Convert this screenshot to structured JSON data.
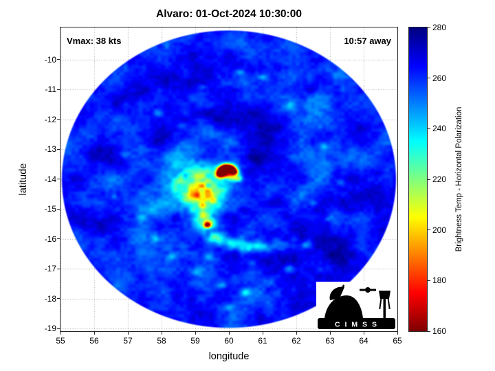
{
  "title": "Alvaro: 01-Oct-2024 10:30:00",
  "annotations": {
    "vmax": "Vmax: 38 kts",
    "time_offset": "10:57 away"
  },
  "axes": {
    "xlabel": "longitude",
    "ylabel": "latitude",
    "xticks": [
      55,
      56,
      57,
      58,
      59,
      60,
      61,
      62,
      63,
      64,
      65
    ],
    "yticks": [
      -10,
      -11,
      -12,
      -13,
      -14,
      -15,
      -16,
      -17,
      -18,
      -19
    ],
    "xlim": [
      55,
      65
    ],
    "ylim": [
      -19.09,
      -8.92
    ]
  },
  "colorbar": {
    "label": "Brightness Temp - Horizontal Polarization",
    "ticks": [
      160,
      180,
      200,
      220,
      240,
      260,
      280
    ],
    "min": 160,
    "max": 280,
    "colormap": "jet-reversed"
  },
  "logo": {
    "text": "C I M S S"
  },
  "chart_data": {
    "type": "heatmap",
    "title": "Alvaro: 01-Oct-2024 10:30:00",
    "xlabel": "longitude",
    "ylabel": "latitude",
    "xlim": [
      55,
      65
    ],
    "ylim": [
      -19.09,
      -8.92
    ],
    "colorbar_label": "Brightness Temp - Horizontal Polarization",
    "clim": [
      160,
      280
    ],
    "grid": true,
    "description": "Circular microwave brightness-temperature swath of tropical storm Alvaro: blue background ~260K, convective comma-shaped core ~200K west of center, dark-red eyewall arc ~165K near (59.95,-13.8), orange cell at (59.35,-15.5), curved rainband to the southeast, scattered cool cells elsewhere",
    "swath": {
      "center_lon": 60.0,
      "center_lat": -14.0,
      "radius_lon": 4.95,
      "radius_lat": 4.97
    },
    "background_bt": 261,
    "texture": {
      "noise_octaves": [
        [
          1.5,
          7.0
        ],
        [
          4.0,
          4.5
        ],
        [
          9.0,
          3.0
        ]
      ],
      "spiral": {
        "arms": 2,
        "pitch": 3.0,
        "amp": 4.0,
        "phase": 1.0,
        "r0": 2.4,
        "rw": 1.9
      }
    },
    "blobs": [
      [
        59.15,
        -14.15,
        0.5,
        0.55,
        30
      ],
      [
        59.3,
        -14.8,
        0.45,
        0.5,
        32
      ],
      [
        58.85,
        -14.5,
        0.5,
        0.5,
        26
      ],
      [
        59.0,
        -13.75,
        0.4,
        0.35,
        22
      ],
      [
        59.6,
        -14.45,
        0.4,
        0.4,
        18
      ],
      [
        58.5,
        -14.15,
        0.4,
        0.45,
        16
      ],
      [
        59.2,
        -15.35,
        0.3,
        0.3,
        26
      ],
      [
        58.3,
        -13.4,
        0.45,
        0.3,
        11
      ],
      [
        59.7,
        -13.6,
        0.35,
        0.25,
        14
      ],
      [
        58.6,
        -12.9,
        0.5,
        0.35,
        13
      ],
      [
        59.3,
        -12.4,
        0.6,
        0.3,
        9
      ],
      [
        57.9,
        -15.0,
        0.45,
        0.35,
        12
      ],
      [
        59.73,
        -13.83,
        0.12,
        0.12,
        85
      ],
      [
        59.78,
        -13.69,
        0.12,
        0.12,
        92
      ],
      [
        59.91,
        -13.61,
        0.13,
        0.12,
        95
      ],
      [
        60.06,
        -13.64,
        0.12,
        0.12,
        90
      ],
      [
        60.16,
        -13.75,
        0.11,
        0.11,
        82
      ],
      [
        59.95,
        -13.78,
        0.2,
        0.17,
        50
      ],
      [
        59.95,
        -13.8,
        0.33,
        0.28,
        24
      ],
      [
        60.24,
        -13.98,
        0.14,
        0.11,
        40
      ],
      [
        59.35,
        -15.52,
        0.12,
        0.12,
        48
      ],
      [
        59.35,
        -15.52,
        0.28,
        0.26,
        26
      ],
      [
        59.58,
        -15.95,
        0.28,
        0.22,
        34
      ],
      [
        60.1,
        -16.15,
        0.35,
        0.22,
        28
      ],
      [
        60.6,
        -16.25,
        0.35,
        0.2,
        22
      ],
      [
        61.1,
        -16.28,
        0.35,
        0.2,
        17
      ],
      [
        61.55,
        -16.22,
        0.3,
        0.18,
        13
      ],
      [
        60.35,
        -10.45,
        0.15,
        0.12,
        16
      ],
      [
        59.2,
        -10.9,
        0.14,
        0.12,
        13
      ],
      [
        61.0,
        -10.6,
        0.13,
        0.11,
        12
      ],
      [
        61.85,
        -11.55,
        0.16,
        0.13,
        17
      ],
      [
        57.9,
        -11.8,
        0.14,
        0.12,
        12
      ],
      [
        56.9,
        -13.2,
        0.15,
        0.12,
        13
      ],
      [
        57.4,
        -15.3,
        0.16,
        0.13,
        14
      ],
      [
        56.6,
        -14.6,
        0.14,
        0.12,
        12
      ],
      [
        62.8,
        -12.9,
        0.15,
        0.12,
        14
      ],
      [
        63.3,
        -14.1,
        0.14,
        0.12,
        13
      ],
      [
        63.0,
        -15.3,
        0.16,
        0.13,
        15
      ],
      [
        62.3,
        -16.2,
        0.17,
        0.13,
        16
      ],
      [
        61.8,
        -17.0,
        0.18,
        0.14,
        18
      ],
      [
        61.2,
        -17.45,
        0.17,
        0.14,
        17
      ],
      [
        60.5,
        -17.8,
        0.16,
        0.13,
        16
      ],
      [
        59.8,
        -17.55,
        0.15,
        0.13,
        15
      ],
      [
        59.0,
        -17.15,
        0.16,
        0.13,
        16
      ],
      [
        58.3,
        -16.6,
        0.15,
        0.12,
        14
      ],
      [
        57.8,
        -16.0,
        0.14,
        0.12,
        13
      ],
      [
        60.0,
        -18.3,
        0.14,
        0.11,
        12
      ],
      [
        62.5,
        -14.8,
        0.13,
        0.11,
        12
      ],
      [
        58.6,
        -12.2,
        0.14,
        0.12,
        12
      ],
      [
        60.7,
        -16.8,
        0.15,
        0.12,
        14
      ],
      [
        59.4,
        -16.6,
        0.15,
        0.12,
        13
      ],
      [
        60.6,
        -10.3,
        0.5,
        0.3,
        -10
      ],
      [
        62.3,
        -10.9,
        0.4,
        0.3,
        -11
      ],
      [
        58.6,
        -10.7,
        0.5,
        0.3,
        -9
      ],
      [
        63.6,
        -12.3,
        0.5,
        0.4,
        -10
      ],
      [
        64.1,
        -14.6,
        0.4,
        0.5,
        -10
      ],
      [
        63.2,
        -16.5,
        0.5,
        0.4,
        -9
      ],
      [
        56.3,
        -15.6,
        0.4,
        0.4,
        -9
      ],
      [
        56.1,
        -13.0,
        0.4,
        0.4,
        -8
      ],
      [
        61.2,
        -12.2,
        0.5,
        0.4,
        -8
      ],
      [
        57.3,
        -11.1,
        0.4,
        0.3,
        -9
      ],
      [
        60.8,
        -11.6,
        0.4,
        0.3,
        -8
      ],
      [
        62.0,
        -13.6,
        0.5,
        0.4,
        -7
      ],
      [
        59.6,
        -11.8,
        0.5,
        0.35,
        -7
      ],
      [
        61.6,
        -14.8,
        0.5,
        0.4,
        -8
      ],
      [
        60.9,
        -13.3,
        0.35,
        0.3,
        -9
      ],
      [
        58.1,
        -12.7,
        0.45,
        0.35,
        -7
      ],
      [
        58.1,
        -15.6,
        0.4,
        0.35,
        -7
      ],
      [
        60.7,
        -15.1,
        0.4,
        0.3,
        -8
      ]
    ]
  }
}
